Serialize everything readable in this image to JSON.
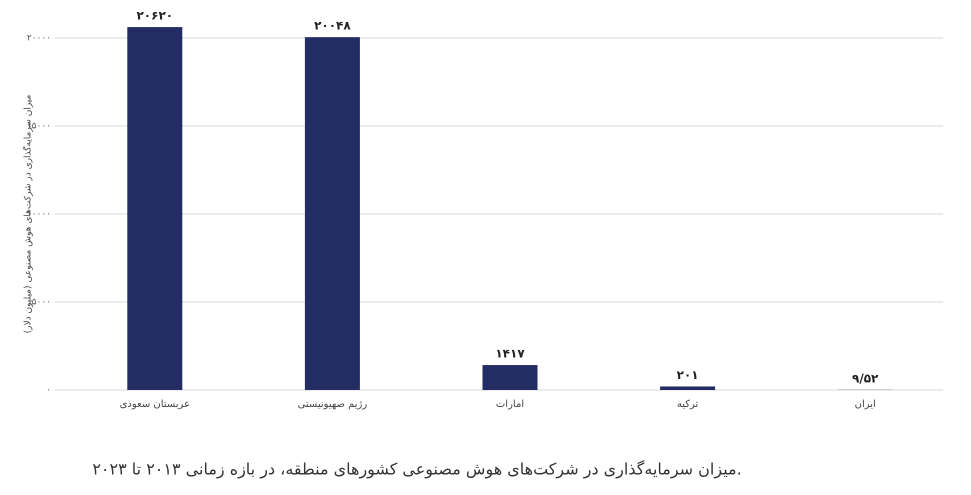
{
  "chart_data": {
    "type": "bar",
    "y_label": "میزان سرمایه‌گذاری در شرکت‌های هوش مصنوعی (میلیون دلار)",
    "caption": "میزان سرمایه‌گذاری در شرکت‌های هوش مصنوعی کشورهای منطقه، در بازه زمانی ۲۰۱۳ تا ۲۰۲۳.",
    "categories": [
      "عربستان سعودی",
      "رژیم صهیونیستی",
      "امارات",
      "ترکیه",
      "ایران"
    ],
    "values": [
      20620,
      20048,
      1417,
      201,
      9.52
    ],
    "value_labels": [
      "۲۰۶۲۰",
      "۲۰۰۴۸",
      "۱۴۱۷",
      "۲۰۱",
      "۹/۵۲"
    ],
    "color": "#232d63",
    "ylim": [
      0,
      21000
    ],
    "yticks": [
      {
        "value": 0,
        "label": "۰"
      },
      {
        "value": 5000,
        "label": "۵۰۰۰"
      },
      {
        "value": 10000,
        "label": "۱۰۰۰۰"
      },
      {
        "value": 15000,
        "label": "۱۵۰۰۰"
      },
      {
        "value": 20000,
        "label": "۲۰۰۰۰"
      }
    ],
    "grid": true
  }
}
